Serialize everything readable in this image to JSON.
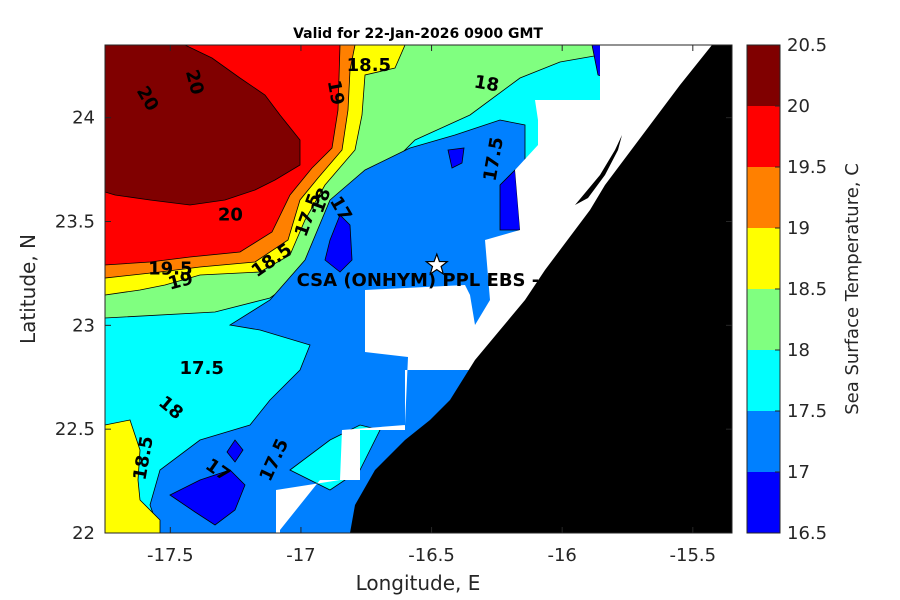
{
  "title": "Valid for 22-Jan-2026 0900 GMT",
  "x_axis": {
    "label": "Longitude, E",
    "ticks": [
      "-17.5",
      "-17",
      "-16.5",
      "-16",
      "-15.5"
    ],
    "tick_values": [
      -17.5,
      -17,
      -16.5,
      -16,
      -15.5
    ],
    "range": [
      -17.75,
      -15.35
    ]
  },
  "y_axis": {
    "label": "Latitude, N",
    "ticks": [
      "22",
      "22.5",
      "23",
      "23.5",
      "24"
    ],
    "tick_values": [
      22,
      22.5,
      23,
      23.5,
      24
    ],
    "range": [
      22,
      24.35
    ]
  },
  "colorbar": {
    "label": "Sea Surface Temperature, C",
    "levels": [
      16.5,
      17,
      17.5,
      18,
      18.5,
      19,
      19.5,
      20,
      20.5
    ],
    "tick_labels": [
      "16.5",
      "17",
      "17.5",
      "18",
      "18.5",
      "19",
      "19.5",
      "20",
      "20.5"
    ],
    "colors": [
      "#0000ff",
      "#0080ff",
      "#00ffff",
      "#80ff80",
      "#ffff00",
      "#ff8000",
      "#ff0000",
      "#800000"
    ]
  },
  "station": {
    "label": "CSA (ONHYM) PPL EBS  - We",
    "lon": -16.48,
    "lat": 23.29
  },
  "contour_labels": [
    {
      "text": "20",
      "lon": -17.59,
      "lat": 24.09,
      "rot": 60
    },
    {
      "text": "20",
      "lon": -17.41,
      "lat": 24.17,
      "rot": 75
    },
    {
      "text": "20",
      "lon": -17.27,
      "lat": 23.53,
      "rot": 0
    },
    {
      "text": "18.5",
      "lon": -16.74,
      "lat": 24.25,
      "rot": 0
    },
    {
      "text": "19",
      "lon": -16.87,
      "lat": 24.12,
      "rot": 80
    },
    {
      "text": "18",
      "lon": -16.29,
      "lat": 24.16,
      "rot": 10
    },
    {
      "text": "17.5",
      "lon": -16.26,
      "lat": 23.8,
      "rot": -80
    },
    {
      "text": "17.5",
      "lon": -16.97,
      "lat": 23.53,
      "rot": -70
    },
    {
      "text": "18",
      "lon": -16.92,
      "lat": 23.6,
      "rot": -70
    },
    {
      "text": "17",
      "lon": -16.85,
      "lat": 23.56,
      "rot": 60
    },
    {
      "text": "18.5",
      "lon": -17.11,
      "lat": 23.31,
      "rot": -35
    },
    {
      "text": "19.5",
      "lon": -17.5,
      "lat": 23.27,
      "rot": 0
    },
    {
      "text": "19",
      "lon": -17.46,
      "lat": 23.21,
      "rot": -15
    },
    {
      "text": "17.5",
      "lon": -17.38,
      "lat": 22.79,
      "rot": 0
    },
    {
      "text": "18",
      "lon": -17.5,
      "lat": 22.6,
      "rot": 40
    },
    {
      "text": "18.5",
      "lon": -17.6,
      "lat": 22.36,
      "rot": -80
    },
    {
      "text": "17",
      "lon": -17.32,
      "lat": 22.3,
      "rot": 35
    },
    {
      "text": "17.5",
      "lon": -17.1,
      "lat": 22.35,
      "rot": -65
    }
  ]
}
